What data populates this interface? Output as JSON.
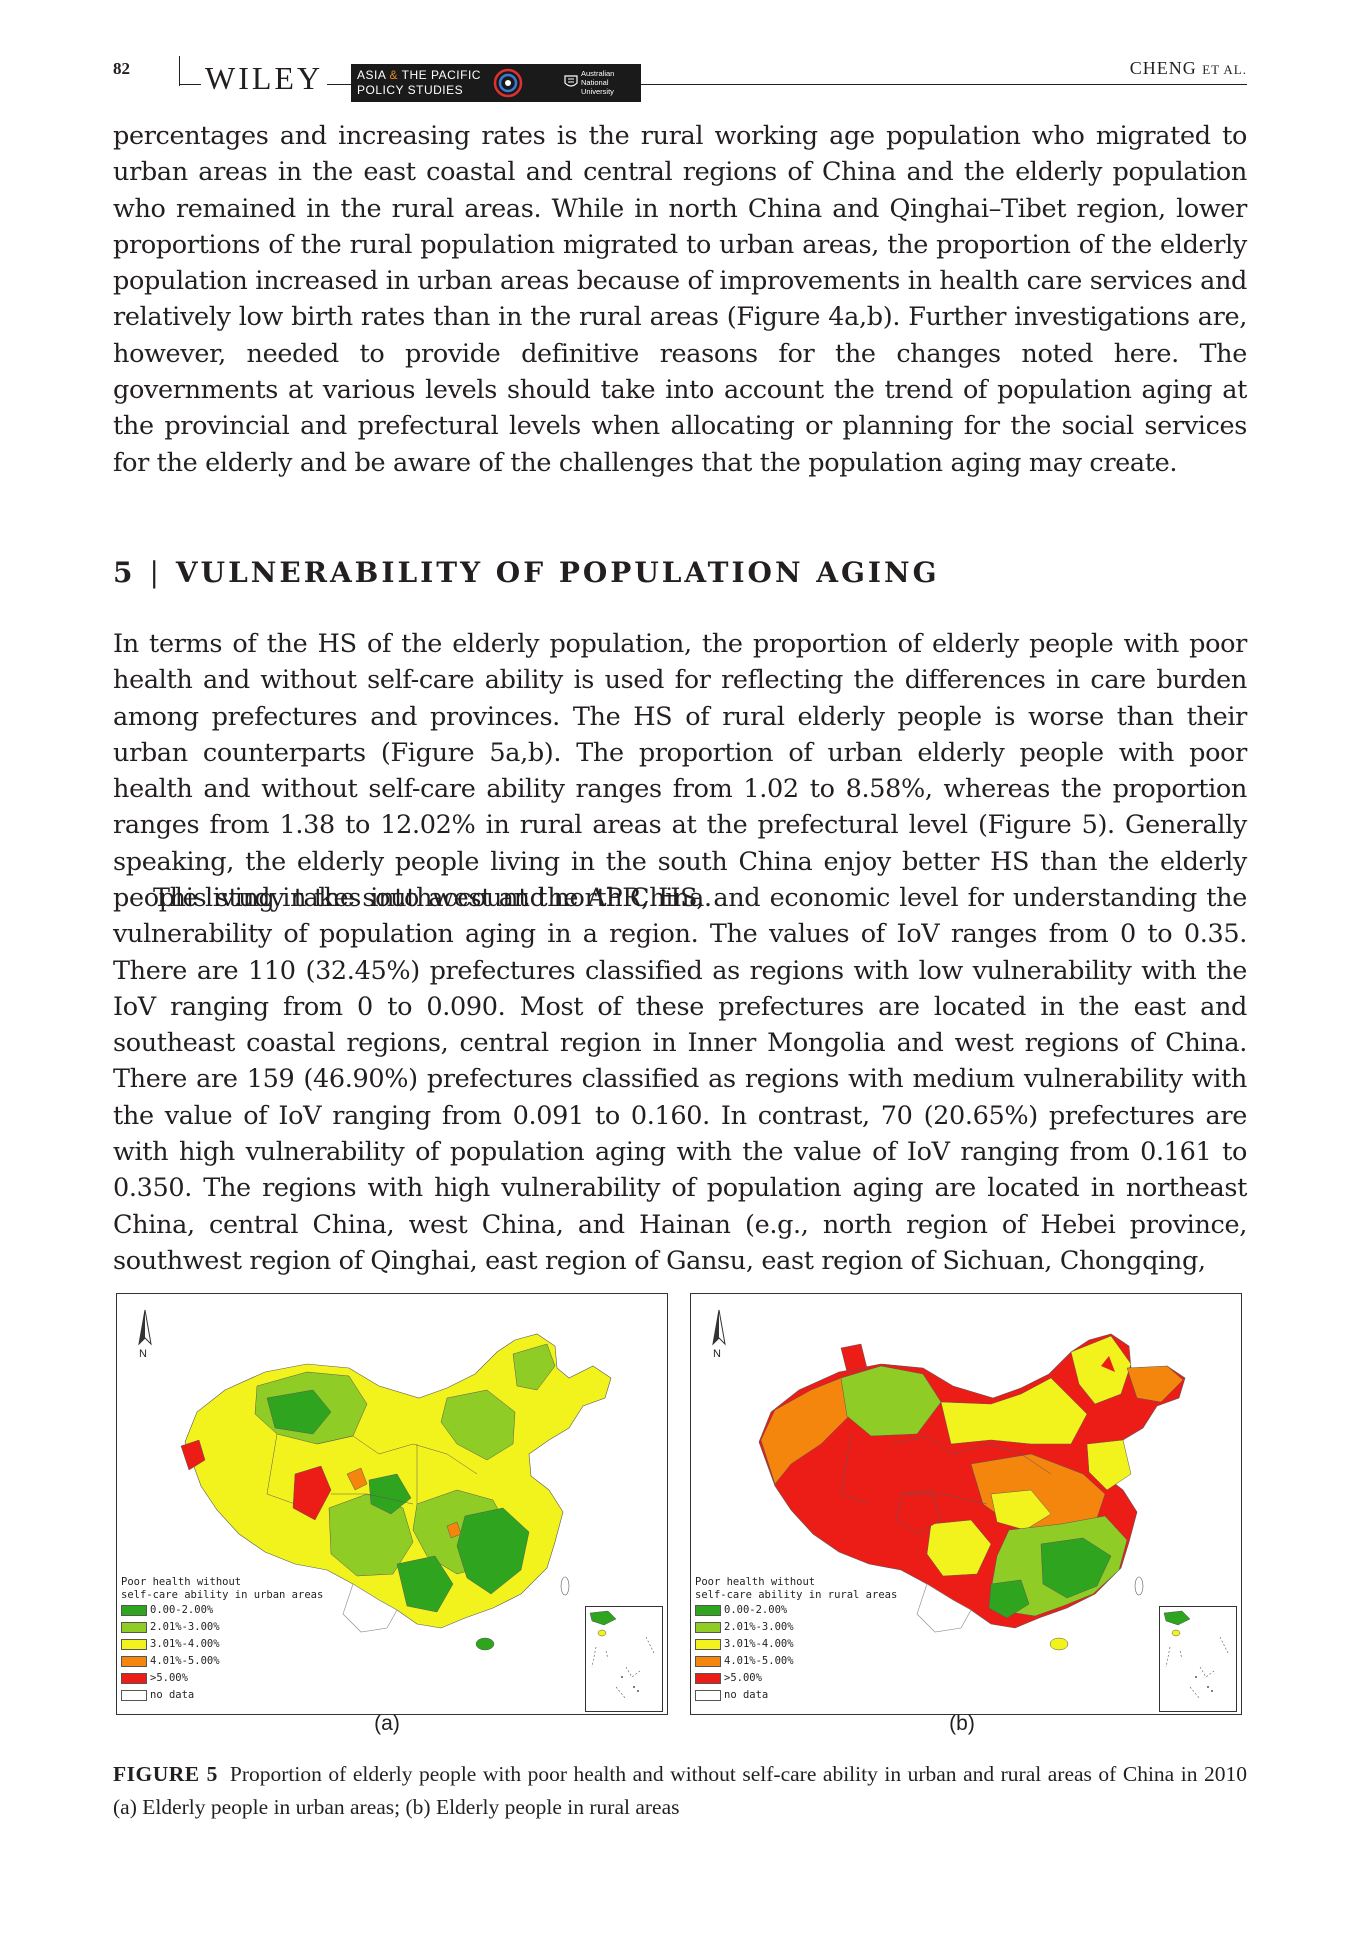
{
  "header": {
    "page_number": "82",
    "publisher": "WILEY",
    "journal_line1_a": "ASIA ",
    "journal_line1_amp": "&",
    "journal_line1_b": " THE PACIFIC",
    "journal_line2": "POLICY STUDIES",
    "university": [
      "Australian",
      "National",
      "University"
    ],
    "running_author": "CHENG",
    "running_author_suffix": "ET AL."
  },
  "paragraphs": {
    "p1": "percentages and increasing rates is the rural working age population who migrated to urban areas in the east coastal and central regions of China and the elderly population who remained in the rural areas. While in north China and Qinghai–Tibet region, lower proportions of the rural population migrated to urban areas, the proportion of the elderly population increased in urban areas because of improvements in health care services and relatively low birth rates than in the rural areas (Figure 4a,b). Further investigations are, however, needed to provide definitive reasons for the changes noted here. The governments at various levels should take into account the trend of population aging at the provincial and prefectural levels when allocating or planning for the social services for the elderly and be aware of the challenges that the population aging may create.",
    "p2": "In terms of the HS of the elderly population, the proportion of elderly people with poor health and without self-care ability is used for reflecting the differences in care burden among prefectures and provinces. The HS of rural elderly people is worse than their urban counterparts (Figure 5a,b). The proportion of urban elderly people with poor health and without self-care ability ranges from 1.02 to 8.58%, whereas the proportion ranges from 1.38 to 12.02% in rural areas at the prefectural level (Figure 5). Generally speaking, the elderly people living in the south China enjoy better HS than the elderly people living in the southwest and north China.",
    "p3": "This study takes into account the APR, HS, and economic level for understanding the vulnerability of population aging in a region. The values of IoV ranges from 0 to 0.35. There are 110 (32.45%) prefectures classified as regions with low vulnerability with the IoV ranging from 0 to 0.090. Most of these prefectures are located in the east and southeast coastal regions, central region in Inner Mongolia and west regions of China. There are 159 (46.90%) prefectures classified as regions with medium vulnerability with the value of IoV ranging from 0.091 to 0.160. In contrast, 70 (20.65%) prefectures are with high vulnerability of population aging with the value of IoV ranging from 0.161 to 0.350. The regions with high vulnerability of population aging are located in northeast China, central China, west China, and Hainan (e.g., north region of Hebei province, southwest region of Qinghai, east region of Gansu, east region of Sichuan, Chongqing,"
  },
  "section": {
    "number": "5",
    "separator": "|",
    "title": "VULNERABILITY OF POPULATION AGING"
  },
  "figure": {
    "north_label": "N",
    "legend_classes": [
      {
        "label": "0.00-2.00%",
        "color": "#2ea41f"
      },
      {
        "label": "2.01%-3.00%",
        "color": "#8fcc25"
      },
      {
        "label": "3.01%-4.00%",
        "color": "#f2f21c"
      },
      {
        "label": "4.01%-5.00%",
        "color": "#f5860d"
      },
      {
        "label": ">5.00%",
        "color": "#ec1c17"
      },
      {
        "label": "no data",
        "color": "#ffffff"
      }
    ],
    "panel_a": {
      "legend_title_1": "Poor health without",
      "legend_title_2": "self-care ability in urban areas",
      "sub_label": "(a)"
    },
    "panel_b": {
      "legend_title_1": "Poor health without",
      "legend_title_2": "self-care ability in rural areas",
      "sub_label": "(b)"
    },
    "caption_label": "FIGURE 5",
    "caption_text": "Proportion of elderly people with poor health and without self-care ability in urban and rural areas of China in 2010 (a) Elderly people in urban areas; (b) Elderly people in rural areas"
  }
}
